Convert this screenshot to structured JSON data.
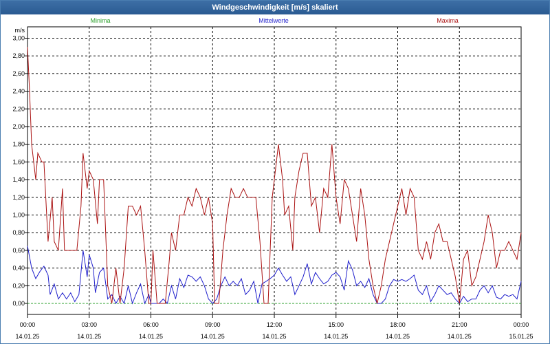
{
  "window": {
    "title": "Windgeschwindigkeit [m/s] skaliert"
  },
  "colors": {
    "min": "#2ca02c",
    "mean": "#1f1fcc",
    "max": "#aa1111",
    "grid": "#000000"
  },
  "chart_data": {
    "type": "line",
    "title": "Windgeschwindigkeit [m/s] skaliert",
    "ylabel": "m/s",
    "ylim": [
      0,
      3.1
    ],
    "yticks": [
      "0,00",
      "0,20",
      "0,40",
      "0,60",
      "0,80",
      "1,00",
      "1,20",
      "1,40",
      "1,60",
      "1,80",
      "2,00",
      "2,20",
      "2,40",
      "2,60",
      "2,80",
      "3,00"
    ],
    "xlim": [
      0,
      24
    ],
    "xticks": [
      {
        "time": "00:00",
        "date": "14.01.25"
      },
      {
        "time": "03:00",
        "date": "14.01.25"
      },
      {
        "time": "06:00",
        "date": "14.01.25"
      },
      {
        "time": "09:00",
        "date": "14.01.25"
      },
      {
        "time": "12:00",
        "date": "14.01.25"
      },
      {
        "time": "15:00",
        "date": "14.01.25"
      },
      {
        "time": "18:00",
        "date": "14.01.25"
      },
      {
        "time": "21:00",
        "date": "14.01.25"
      },
      {
        "time": "00:00",
        "date": "15.01.25"
      }
    ],
    "legend": [
      "Minima",
      "Mittelwerte",
      "Maxima"
    ],
    "series": [
      {
        "name": "Minima",
        "values": [
          [
            0,
            0.0
          ],
          [
            24,
            0.0
          ]
        ]
      },
      {
        "name": "Mittelwerte",
        "values": [
          [
            0,
            0.65
          ],
          [
            0.2,
            0.4
          ],
          [
            0.4,
            0.28
          ],
          [
            0.6,
            0.36
          ],
          [
            0.8,
            0.42
          ],
          [
            1.0,
            0.32
          ],
          [
            1.1,
            0.1
          ],
          [
            1.3,
            0.22
          ],
          [
            1.5,
            0.05
          ],
          [
            1.7,
            0.12
          ],
          [
            1.9,
            0.05
          ],
          [
            2.1,
            0.12
          ],
          [
            2.3,
            0.02
          ],
          [
            2.5,
            0.1
          ],
          [
            2.7,
            0.6
          ],
          [
            2.9,
            0.3
          ],
          [
            3.0,
            0.55
          ],
          [
            3.2,
            0.4
          ],
          [
            3.3,
            0.12
          ],
          [
            3.5,
            0.35
          ],
          [
            3.7,
            0.4
          ],
          [
            3.9,
            0.05
          ],
          [
            4.1,
            0.1
          ],
          [
            4.3,
            0.0
          ],
          [
            4.5,
            0.08
          ],
          [
            4.7,
            0.0
          ],
          [
            4.9,
            0.2
          ],
          [
            5.1,
            0.0
          ],
          [
            5.3,
            0.12
          ],
          [
            5.5,
            0.22
          ],
          [
            5.7,
            0.0
          ],
          [
            5.9,
            0.1
          ],
          [
            6.0,
            0.0
          ],
          [
            6.2,
            0.0
          ],
          [
            6.4,
            0.0
          ],
          [
            6.6,
            0.05
          ],
          [
            6.8,
            0.0
          ],
          [
            7.0,
            0.2
          ],
          [
            7.2,
            0.05
          ],
          [
            7.4,
            0.28
          ],
          [
            7.6,
            0.18
          ],
          [
            7.8,
            0.32
          ],
          [
            8.0,
            0.3
          ],
          [
            8.2,
            0.25
          ],
          [
            8.4,
            0.3
          ],
          [
            8.6,
            0.2
          ],
          [
            8.8,
            0.05
          ],
          [
            9.0,
            0.0
          ],
          [
            9.2,
            0.05
          ],
          [
            9.4,
            0.2
          ],
          [
            9.6,
            0.3
          ],
          [
            9.8,
            0.2
          ],
          [
            10.0,
            0.25
          ],
          [
            10.2,
            0.2
          ],
          [
            10.4,
            0.28
          ],
          [
            10.6,
            0.1
          ],
          [
            10.8,
            0.15
          ],
          [
            11.0,
            0.25
          ],
          [
            11.2,
            0.0
          ],
          [
            11.4,
            0.22
          ],
          [
            11.6,
            0.25
          ],
          [
            11.8,
            0.28
          ],
          [
            12.0,
            0.32
          ],
          [
            12.2,
            0.4
          ],
          [
            12.4,
            0.32
          ],
          [
            12.6,
            0.25
          ],
          [
            12.8,
            0.3
          ],
          [
            13.0,
            0.1
          ],
          [
            13.2,
            0.2
          ],
          [
            13.4,
            0.3
          ],
          [
            13.6,
            0.45
          ],
          [
            13.8,
            0.22
          ],
          [
            14.0,
            0.35
          ],
          [
            14.2,
            0.28
          ],
          [
            14.4,
            0.22
          ],
          [
            14.6,
            0.25
          ],
          [
            14.8,
            0.32
          ],
          [
            15.0,
            0.35
          ],
          [
            15.2,
            0.3
          ],
          [
            15.4,
            0.15
          ],
          [
            15.6,
            0.48
          ],
          [
            15.8,
            0.38
          ],
          [
            16.0,
            0.2
          ],
          [
            16.2,
            0.25
          ],
          [
            16.4,
            0.18
          ],
          [
            16.6,
            0.28
          ],
          [
            16.8,
            0.1
          ],
          [
            17.0,
            0.0
          ],
          [
            17.2,
            0.0
          ],
          [
            17.4,
            0.05
          ],
          [
            17.6,
            0.2
          ],
          [
            17.8,
            0.27
          ],
          [
            18.0,
            0.25
          ],
          [
            18.2,
            0.27
          ],
          [
            18.4,
            0.25
          ],
          [
            18.6,
            0.28
          ],
          [
            18.8,
            0.32
          ],
          [
            19.0,
            0.15
          ],
          [
            19.2,
            0.1
          ],
          [
            19.4,
            0.2
          ],
          [
            19.6,
            0.02
          ],
          [
            19.8,
            0.1
          ],
          [
            20.0,
            0.2
          ],
          [
            20.2,
            0.15
          ],
          [
            20.4,
            0.1
          ],
          [
            20.6,
            0.12
          ],
          [
            20.8,
            0.05
          ],
          [
            21.0,
            0.0
          ],
          [
            21.2,
            0.08
          ],
          [
            21.4,
            0.02
          ],
          [
            21.6,
            0.05
          ],
          [
            21.8,
            0.05
          ],
          [
            22.0,
            0.15
          ],
          [
            22.2,
            0.2
          ],
          [
            22.4,
            0.12
          ],
          [
            22.6,
            0.2
          ],
          [
            22.8,
            0.07
          ],
          [
            23.0,
            0.05
          ],
          [
            23.2,
            0.1
          ],
          [
            23.4,
            0.08
          ],
          [
            23.6,
            0.1
          ],
          [
            23.8,
            0.05
          ],
          [
            24.0,
            0.25
          ]
        ]
      },
      {
        "name": "Maxima",
        "values": [
          [
            0,
            2.9
          ],
          [
            0.1,
            2.4
          ],
          [
            0.2,
            1.8
          ],
          [
            0.4,
            1.4
          ],
          [
            0.5,
            1.7
          ],
          [
            0.7,
            1.6
          ],
          [
            0.8,
            1.6
          ],
          [
            1.0,
            0.7
          ],
          [
            1.2,
            1.2
          ],
          [
            1.3,
            0.7
          ],
          [
            1.5,
            0.6
          ],
          [
            1.7,
            1.3
          ],
          [
            1.8,
            0.6
          ],
          [
            2.0,
            0.6
          ],
          [
            2.2,
            0.6
          ],
          [
            2.4,
            0.6
          ],
          [
            2.6,
            1.1
          ],
          [
            2.7,
            1.7
          ],
          [
            2.9,
            1.3
          ],
          [
            3.0,
            1.5
          ],
          [
            3.2,
            1.4
          ],
          [
            3.4,
            0.9
          ],
          [
            3.5,
            1.4
          ],
          [
            3.7,
            1.4
          ],
          [
            3.9,
            0.2
          ],
          [
            4.1,
            0.0
          ],
          [
            4.3,
            0.4
          ],
          [
            4.5,
            0.0
          ],
          [
            4.7,
            0.4
          ],
          [
            4.9,
            1.1
          ],
          [
            5.1,
            1.1
          ],
          [
            5.3,
            1.0
          ],
          [
            5.5,
            1.1
          ],
          [
            5.7,
            0.6
          ],
          [
            5.9,
            0.0
          ],
          [
            6.0,
            0.0
          ],
          [
            6.1,
            0.6
          ],
          [
            6.3,
            0.0
          ],
          [
            6.5,
            0.0
          ],
          [
            6.7,
            0.0
          ],
          [
            6.9,
            0.5
          ],
          [
            7.0,
            0.8
          ],
          [
            7.2,
            0.6
          ],
          [
            7.4,
            1.0
          ],
          [
            7.6,
            1.0
          ],
          [
            7.8,
            1.2
          ],
          [
            8.0,
            1.1
          ],
          [
            8.2,
            1.3
          ],
          [
            8.4,
            1.2
          ],
          [
            8.6,
            1.0
          ],
          [
            8.8,
            1.2
          ],
          [
            9.0,
            0.9
          ],
          [
            9.1,
            0.0
          ],
          [
            9.3,
            0.0
          ],
          [
            9.5,
            0.6
          ],
          [
            9.7,
            1.0
          ],
          [
            9.9,
            1.3
          ],
          [
            10.1,
            1.2
          ],
          [
            10.3,
            1.2
          ],
          [
            10.5,
            1.3
          ],
          [
            10.7,
            1.2
          ],
          [
            10.9,
            1.2
          ],
          [
            11.1,
            1.2
          ],
          [
            11.3,
            0.7
          ],
          [
            11.5,
            0.0
          ],
          [
            11.7,
            0.0
          ],
          [
            11.9,
            1.2
          ],
          [
            12.1,
            1.6
          ],
          [
            12.2,
            1.8
          ],
          [
            12.4,
            1.4
          ],
          [
            12.5,
            1.0
          ],
          [
            12.7,
            1.1
          ],
          [
            12.9,
            0.6
          ],
          [
            13.0,
            1.2
          ],
          [
            13.2,
            1.5
          ],
          [
            13.4,
            1.7
          ],
          [
            13.6,
            1.7
          ],
          [
            13.8,
            1.1
          ],
          [
            14.0,
            1.2
          ],
          [
            14.2,
            0.8
          ],
          [
            14.4,
            1.3
          ],
          [
            14.6,
            1.2
          ],
          [
            14.8,
            1.8
          ],
          [
            15.0,
            1.2
          ],
          [
            15.2,
            0.9
          ],
          [
            15.4,
            1.4
          ],
          [
            15.6,
            1.3
          ],
          [
            15.8,
            1.0
          ],
          [
            16.0,
            0.7
          ],
          [
            16.2,
            1.3
          ],
          [
            16.4,
            1.0
          ],
          [
            16.6,
            0.5
          ],
          [
            16.8,
            0.2
          ],
          [
            17.0,
            0.0
          ],
          [
            17.2,
            0.2
          ],
          [
            17.4,
            0.5
          ],
          [
            17.6,
            0.7
          ],
          [
            17.8,
            0.9
          ],
          [
            18.0,
            1.1
          ],
          [
            18.2,
            1.3
          ],
          [
            18.4,
            1.0
          ],
          [
            18.6,
            1.3
          ],
          [
            18.8,
            1.2
          ],
          [
            19.0,
            0.6
          ],
          [
            19.2,
            0.5
          ],
          [
            19.4,
            0.7
          ],
          [
            19.6,
            0.5
          ],
          [
            19.8,
            0.8
          ],
          [
            20.0,
            0.9
          ],
          [
            20.2,
            0.7
          ],
          [
            20.4,
            0.7
          ],
          [
            20.6,
            0.5
          ],
          [
            20.8,
            0.3
          ],
          [
            21.0,
            0.0
          ],
          [
            21.2,
            0.5
          ],
          [
            21.4,
            0.6
          ],
          [
            21.6,
            0.2
          ],
          [
            21.8,
            0.3
          ],
          [
            22.0,
            0.5
          ],
          [
            22.2,
            0.7
          ],
          [
            22.4,
            1.0
          ],
          [
            22.6,
            0.8
          ],
          [
            22.8,
            0.4
          ],
          [
            23.0,
            0.6
          ],
          [
            23.2,
            0.6
          ],
          [
            23.4,
            0.7
          ],
          [
            23.6,
            0.6
          ],
          [
            23.8,
            0.5
          ],
          [
            24.0,
            0.8
          ]
        ]
      }
    ]
  }
}
